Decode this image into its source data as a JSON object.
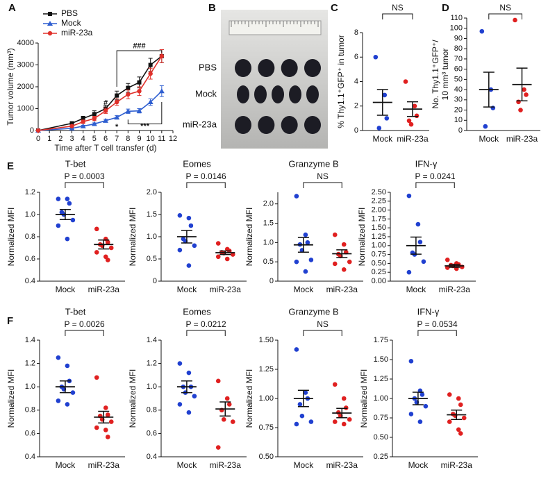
{
  "chart_data": [
    {
      "type": "line",
      "panel": "A",
      "ylabel": "Tumor volume (mm³)",
      "xlabel": "Time after T cell transfer (d)",
      "x": [
        0,
        3,
        4,
        5,
        6,
        7,
        8,
        9,
        10,
        11
      ],
      "xlim": [
        0,
        12
      ],
      "xticks": [
        0,
        1,
        2,
        3,
        4,
        5,
        6,
        7,
        8,
        9,
        10,
        11,
        12
      ],
      "ylim": [
        0,
        4000
      ],
      "yticks": [
        0,
        1000,
        2000,
        3000,
        4000
      ],
      "series": [
        {
          "name": "PBS",
          "color": "#111111",
          "marker": "square",
          "values": [
            0,
            330,
            550,
            750,
            1000,
            1600,
            1950,
            2200,
            3000,
            3400
          ],
          "errors": [
            0,
            60,
            100,
            150,
            150,
            200,
            200,
            250,
            300,
            300
          ]
        },
        {
          "name": "Mock",
          "color": "#2f5fd0",
          "marker": "triangle",
          "values": [
            0,
            100,
            200,
            300,
            450,
            600,
            880,
            900,
            1300,
            1800
          ],
          "errors": [
            0,
            30,
            40,
            50,
            60,
            80,
            100,
            100,
            150,
            250
          ]
        },
        {
          "name": "miR-23a",
          "color": "#e0302a",
          "marker": "circle",
          "values": [
            0,
            200,
            400,
            550,
            900,
            1300,
            1650,
            1800,
            2600,
            3400
          ],
          "errors": [
            0,
            40,
            80,
            100,
            120,
            150,
            200,
            200,
            250,
            300
          ]
        }
      ],
      "annotations": [
        "#",
        "*",
        "***",
        "###"
      ]
    },
    {
      "type": "image",
      "panel": "B",
      "labels": [
        "PBS",
        "Mock",
        "miR-23a"
      ]
    },
    {
      "type": "dotplot",
      "panel": "C",
      "ylabel": [
        "% Thy1.1⁺GFP⁺ in tumor"
      ],
      "categories": [
        "Mock",
        "miR-23a"
      ],
      "colors": [
        "#2040d0",
        "#e02020"
      ],
      "ylim": [
        0,
        8
      ],
      "yticks": [
        0,
        2,
        4,
        6,
        8
      ],
      "points": [
        [
          6.0,
          2.9,
          1.0,
          0.2
        ],
        [
          4.0,
          2.0,
          1.2,
          0.8,
          0.5
        ]
      ],
      "means": [
        2.3,
        1.75
      ],
      "errors": [
        1.05,
        0.6
      ],
      "annotation": "NS"
    },
    {
      "type": "dotplot",
      "panel": "D",
      "ylabel": [
        "No. Thy1.1⁺GFP⁺/",
        "10 mm³ tumor"
      ],
      "categories": [
        "Mock",
        "miR-23a"
      ],
      "colors": [
        "#2040d0",
        "#e02020"
      ],
      "ylim": [
        0,
        110
      ],
      "yticks": [
        0,
        10,
        20,
        30,
        40,
        50,
        60,
        70,
        80,
        90,
        100,
        110
      ],
      "points": [
        [
          97,
          40,
          22,
          4
        ],
        [
          108,
          40,
          35,
          28,
          20
        ]
      ],
      "means": [
        40,
        45
      ],
      "errors": [
        17,
        16
      ],
      "annotation": "NS"
    },
    {
      "type": "dotplot",
      "panel": "E",
      "title": "T-bet",
      "ylabel": [
        "Normalized MFI"
      ],
      "categories": [
        "Mock",
        "miR-23a"
      ],
      "colors": [
        "#2040d0",
        "#e02020"
      ],
      "ylim": [
        0.4,
        1.2
      ],
      "yticks": [
        0.4,
        0.6,
        0.8,
        {
          "value": 1,
          "label": "1.0"
        },
        1.2
      ],
      "points": [
        [
          1.14,
          1.14,
          1.1,
          1.02,
          1.0,
          0.95,
          0.9,
          0.78
        ],
        [
          0.87,
          0.78,
          0.75,
          0.73,
          0.72,
          0.7,
          0.66,
          0.62,
          0.59
        ]
      ],
      "means": [
        1.0,
        0.73
      ],
      "errors": [
        0.045,
        0.04
      ],
      "annotation": "P = 0.0003"
    },
    {
      "type": "dotplot",
      "title": "Eomes",
      "ylabel": [
        "Normalized MFI"
      ],
      "categories": [
        "Mock",
        "miR-23a"
      ],
      "colors": [
        "#2040d0",
        "#e02020"
      ],
      "ylim": [
        0,
        2
      ],
      "yticks": [
        0,
        0.5,
        {
          "value": 1,
          "label": "1.0"
        },
        1.5,
        {
          "value": 2,
          "label": "2.0"
        }
      ],
      "points": [
        [
          1.48,
          1.42,
          1.25,
          0.95,
          0.9,
          0.8,
          0.7,
          0.35
        ],
        [
          0.85,
          0.72,
          0.68,
          0.65,
          0.63,
          0.6,
          0.55,
          0.5
        ]
      ],
      "means": [
        1.0,
        0.64
      ],
      "errors": [
        0.14,
        0.04
      ],
      "annotation": "P = 0.0146"
    },
    {
      "type": "dotplot",
      "title": "Granzyme B",
      "ylabel": [
        "Normalized MFI"
      ],
      "categories": [
        "Mock",
        "miR-23a"
      ],
      "colors": [
        "#2040d0",
        "#e02020"
      ],
      "ylim": [
        0,
        2.3
      ],
      "yticks": [
        0,
        0.5,
        {
          "value": 1,
          "label": "1.0"
        },
        1.5,
        {
          "value": 2,
          "label": "2.0"
        }
      ],
      "points": [
        [
          2.2,
          1.2,
          1.0,
          0.95,
          0.8,
          0.55,
          0.5,
          0.25
        ],
        [
          1.2,
          0.95,
          0.75,
          0.7,
          0.65,
          0.5,
          0.45,
          0.3
        ]
      ],
      "means": [
        0.94,
        0.71
      ],
      "errors": [
        0.19,
        0.1
      ],
      "annotation": "NS"
    },
    {
      "type": "dotplot",
      "title": "IFN-γ",
      "ylabel": [
        "Normalized MFI"
      ],
      "categories": [
        "Mock",
        "miR-23a"
      ],
      "colors": [
        "#2040d0",
        "#e02020"
      ],
      "ylim": [
        0,
        2.5
      ],
      "yticks": [
        {
          "value": 0,
          "label": "0.00"
        },
        0.25,
        {
          "value": 0.5,
          "label": "0.50"
        },
        0.75,
        {
          "value": 1,
          "label": "1.00"
        },
        1.25,
        {
          "value": 1.5,
          "label": "1.50"
        },
        1.75,
        {
          "value": 2,
          "label": "2.00"
        },
        2.25,
        {
          "value": 2.5,
          "label": "2.50"
        }
      ],
      "points": [
        [
          2.4,
          1.6,
          1.1,
          0.8,
          0.75,
          0.55,
          0.25
        ],
        [
          0.6,
          0.5,
          0.47,
          0.45,
          0.43,
          0.4,
          0.38,
          0.35
        ]
      ],
      "means": [
        1.0,
        0.43
      ],
      "errors": [
        0.24,
        0.04
      ],
      "annotation": "P = 0.0241"
    },
    {
      "type": "dotplot",
      "panel": "F",
      "title": "T-bet",
      "ylabel": [
        "Normalized MFI"
      ],
      "categories": [
        "Mock",
        "miR-23a"
      ],
      "colors": [
        "#2040d0",
        "#e02020"
      ],
      "ylim": [
        0.4,
        1.4
      ],
      "yticks": [
        0.4,
        0.6,
        0.8,
        {
          "value": 1,
          "label": "1.0"
        },
        1.2,
        1.4
      ],
      "points": [
        [
          1.25,
          1.18,
          1.05,
          1.0,
          0.98,
          0.95,
          0.88,
          0.85
        ],
        [
          1.08,
          0.82,
          0.76,
          0.75,
          0.72,
          0.7,
          0.65,
          0.63,
          0.57
        ]
      ],
      "means": [
        1.0,
        0.74
      ],
      "errors": [
        0.05,
        0.05
      ],
      "annotation": "P = 0.0026"
    },
    {
      "type": "dotplot",
      "title": "Eomes",
      "ylabel": [
        "Normalized MFI"
      ],
      "categories": [
        "Mock",
        "miR-23a"
      ],
      "colors": [
        "#2040d0",
        "#e02020"
      ],
      "ylim": [
        0.4,
        1.4
      ],
      "yticks": [
        0.4,
        0.6,
        0.8,
        {
          "value": 1,
          "label": "1.0"
        },
        1.2,
        1.4
      ],
      "points": [
        [
          1.2,
          1.12,
          1.0,
          1.0,
          0.95,
          0.92,
          0.85,
          0.78
        ],
        [
          1.05,
          0.9,
          0.85,
          0.8,
          0.72,
          0.7,
          0.48
        ]
      ],
      "means": [
        1.0,
        0.81
      ],
      "errors": [
        0.05,
        0.06
      ],
      "annotation": "P = 0.0212"
    },
    {
      "type": "dotplot",
      "title": "Granzyme B",
      "ylabel": [
        "Normalized MFI"
      ],
      "categories": [
        "Mock",
        "miR-23a"
      ],
      "colors": [
        "#2040d0",
        "#e02020"
      ],
      "ylim": [
        0.5,
        1.5
      ],
      "yticks": [
        {
          "value": 0.5,
          "label": "0.50"
        },
        0.75,
        {
          "value": 1,
          "label": "1.00"
        },
        1.25,
        {
          "value": 1.5,
          "label": "1.50"
        }
      ],
      "points": [
        [
          1.42,
          1.05,
          1.0,
          0.95,
          0.85,
          0.8,
          0.78
        ],
        [
          1.12,
          1.0,
          0.92,
          0.88,
          0.85,
          0.82,
          0.8,
          0.78
        ]
      ],
      "means": [
        1.0,
        0.875
      ],
      "errors": [
        0.07,
        0.04
      ],
      "annotation": "NS"
    },
    {
      "type": "dotplot",
      "title": "IFN-γ",
      "ylabel": [
        "Normalized MFI"
      ],
      "categories": [
        "Mock",
        "miR-23a"
      ],
      "colors": [
        "#2040d0",
        "#e02020"
      ],
      "ylim": [
        0.25,
        1.75
      ],
      "yticks": [
        0.25,
        {
          "value": 0.5,
          "label": "0.50"
        },
        0.75,
        {
          "value": 1,
          "label": "1.00"
        },
        1.25,
        {
          "value": 1.5,
          "label": "1.50"
        },
        1.75
      ],
      "points": [
        [
          1.48,
          1.1,
          1.05,
          1.0,
          0.95,
          0.9,
          0.8,
          0.7
        ],
        [
          1.05,
          1.0,
          0.92,
          0.8,
          0.78,
          0.75,
          0.7,
          0.6,
          0.55
        ]
      ],
      "means": [
        1.0,
        0.79
      ],
      "errors": [
        0.08,
        0.06
      ],
      "annotation": "P = 0.0534"
    }
  ]
}
